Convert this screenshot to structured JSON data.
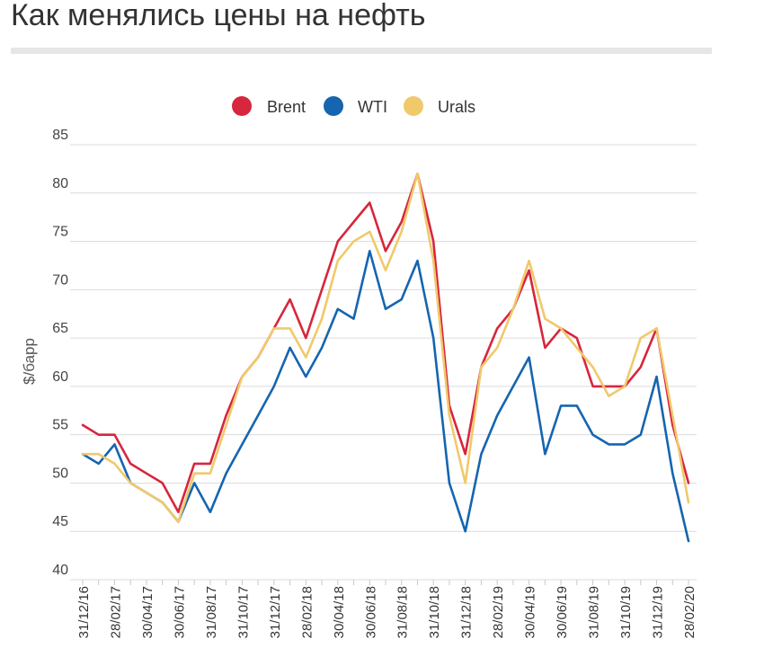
{
  "page": {
    "title": "Как менялись цены на нефть"
  },
  "chart_data": {
    "type": "line",
    "ylabel": "$/барр",
    "ylim": [
      40,
      85
    ],
    "yticks": [
      40,
      45,
      50,
      55,
      60,
      65,
      70,
      75,
      80,
      85
    ],
    "grid": "horizontal",
    "legend_position": "top",
    "x_tick_labels": [
      "31/12/16",
      "28/02/17",
      "30/04/17",
      "30/06/17",
      "31/08/17",
      "31/10/17",
      "31/12/17",
      "28/02/18",
      "30/04/18",
      "30/06/18",
      "31/08/18",
      "31/10/18",
      "31/12/18",
      "28/02/19",
      "30/04/19",
      "30/06/19",
      "31/08/19",
      "31/10/19",
      "31/12/19",
      "28/02/20"
    ],
    "x_months": [
      "12/16",
      "01/17",
      "02/17",
      "03/17",
      "04/17",
      "05/17",
      "06/17",
      "07/17",
      "08/17",
      "09/17",
      "10/17",
      "11/17",
      "12/17",
      "01/18",
      "02/18",
      "03/18",
      "04/18",
      "05/18",
      "06/18",
      "07/18",
      "08/18",
      "09/18",
      "10/18",
      "11/18",
      "12/18",
      "01/19",
      "02/19",
      "03/19",
      "04/19",
      "05/19",
      "06/19",
      "07/19",
      "08/19",
      "09/19",
      "10/19",
      "11/19",
      "12/19",
      "01/20",
      "02/20"
    ],
    "series": [
      {
        "name": "Brent",
        "color": "#d7263d",
        "values": [
          56,
          55,
          55,
          52,
          51,
          50,
          47,
          52,
          52,
          57,
          61,
          63,
          66,
          69,
          65,
          70,
          75,
          77,
          79,
          74,
          77,
          82,
          75,
          58,
          53,
          62,
          66,
          68,
          72,
          64,
          66,
          65,
          60,
          60,
          60,
          62,
          66,
          56,
          50
        ]
      },
      {
        "name": "WTI",
        "color": "#1565b0",
        "values": [
          53,
          52,
          54,
          50,
          49,
          48,
          46,
          50,
          47,
          51,
          54,
          57,
          60,
          64,
          61,
          64,
          68,
          67,
          74,
          68,
          69,
          73,
          65,
          50,
          45,
          53,
          57,
          60,
          63,
          53,
          58,
          58,
          55,
          54,
          54,
          55,
          61,
          51,
          44
        ]
      },
      {
        "name": "Urals",
        "color": "#f0c96b",
        "values": [
          53,
          53,
          52,
          50,
          49,
          48,
          46,
          51,
          51,
          56,
          61,
          63,
          66,
          66,
          63,
          67,
          73,
          75,
          76,
          72,
          76,
          82,
          73,
          57,
          50,
          62,
          64,
          68,
          73,
          67,
          66,
          64,
          62,
          59,
          60,
          65,
          66,
          57,
          48
        ]
      }
    ]
  }
}
